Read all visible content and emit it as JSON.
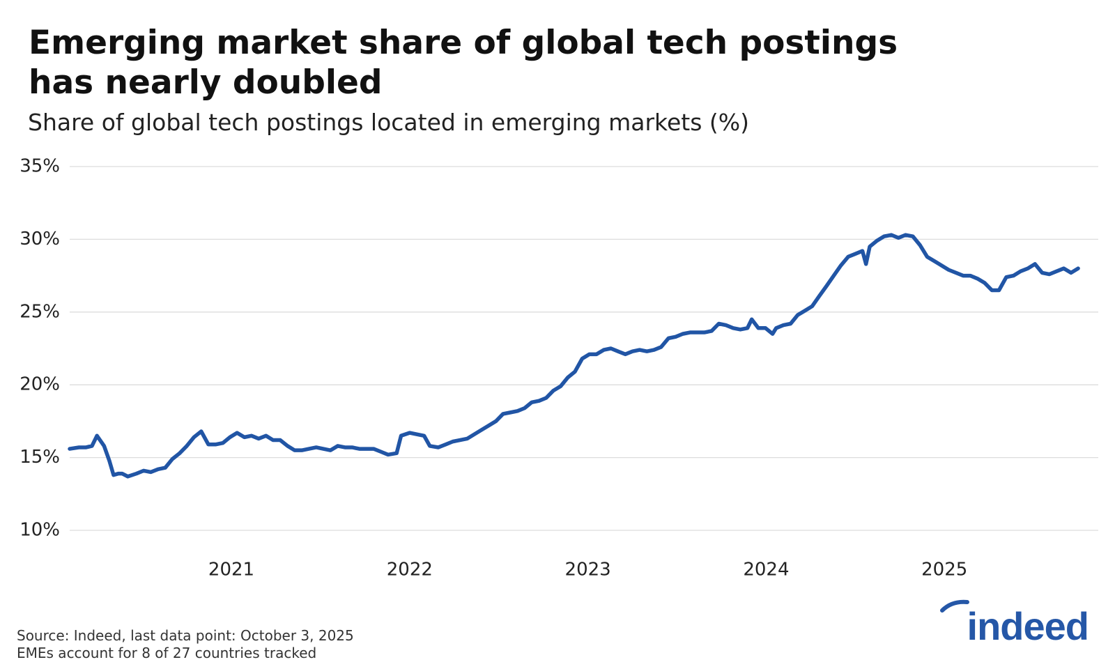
{
  "chart_data": {
    "type": "line",
    "title_lines": [
      "Emerging market share of global tech postings",
      "has nearly doubled"
    ],
    "subtitle": "Share of global tech postings located in emerging markets (%)",
    "source": "Source: Indeed, last data point: October 3, 2025",
    "note": "EMEs account for 8 of 27 countries tracked",
    "logo": "indeed",
    "grid": true,
    "xlim": [
      2020.093,
      2025.863
    ],
    "xticks": [
      2021,
      2022,
      2023,
      2024,
      2025
    ],
    "ylim": [
      10,
      35
    ],
    "yticks": [
      {
        "value": 10,
        "label": "10%"
      },
      {
        "value": 15,
        "label": "15%"
      },
      {
        "value": 20,
        "label": "20%"
      },
      {
        "value": 25,
        "label": "25%"
      },
      {
        "value": 30,
        "label": "30%"
      },
      {
        "value": 35,
        "label": "35%"
      }
    ],
    "x": [
      2020.093,
      2020.145,
      2020.185,
      2020.218,
      2020.246,
      2020.286,
      2020.315,
      2020.339,
      2020.367,
      2020.387,
      2020.419,
      2020.468,
      2020.508,
      2020.548,
      2020.589,
      2020.629,
      2020.669,
      2020.71,
      2020.75,
      2020.79,
      2020.831,
      2020.871,
      2020.911,
      2020.952,
      2020.992,
      2021.032,
      2021.073,
      2021.113,
      2021.153,
      2021.194,
      2021.234,
      2021.274,
      2021.315,
      2021.355,
      2021.395,
      2021.435,
      2021.476,
      2021.516,
      2021.556,
      2021.597,
      2021.637,
      2021.677,
      2021.718,
      2021.758,
      2021.798,
      2021.839,
      2021.879,
      2021.927,
      2021.952,
      2022.0,
      2022.04,
      2022.081,
      2022.113,
      2022.161,
      2022.202,
      2022.242,
      2022.282,
      2022.323,
      2022.363,
      2022.403,
      2022.444,
      2022.484,
      2022.524,
      2022.565,
      2022.605,
      2022.645,
      2022.685,
      2022.726,
      2022.766,
      2022.806,
      2022.847,
      2022.887,
      2022.927,
      2022.968,
      2023.008,
      2023.048,
      2023.089,
      2023.129,
      2023.169,
      2023.21,
      2023.25,
      2023.29,
      2023.331,
      2023.371,
      2023.411,
      2023.452,
      2023.492,
      2023.532,
      2023.573,
      2023.613,
      2023.653,
      2023.694,
      2023.734,
      2023.774,
      2023.815,
      2023.855,
      2023.895,
      2023.919,
      2023.956,
      2023.996,
      2024.036,
      2024.056,
      2024.097,
      2024.137,
      2024.177,
      2024.218,
      2024.258,
      2024.298,
      2024.339,
      2024.379,
      2024.419,
      2024.46,
      2024.5,
      2024.54,
      2024.56,
      2024.581,
      2024.621,
      2024.661,
      2024.702,
      2024.742,
      2024.782,
      2024.823,
      2024.863,
      2024.903,
      2024.944,
      2024.984,
      2025.024,
      2025.065,
      2025.105,
      2025.145,
      2025.185,
      2025.226,
      2025.266,
      2025.306,
      2025.347,
      2025.387,
      2025.427,
      2025.468,
      2025.508,
      2025.548,
      2025.589,
      2025.629,
      2025.669,
      2025.71,
      2025.75
    ],
    "series": [
      {
        "color": "#2155a5",
        "values": [
          15.6,
          15.7,
          15.7,
          15.8,
          16.5,
          15.8,
          14.8,
          13.8,
          13.9,
          13.9,
          13.7,
          13.9,
          14.1,
          14.0,
          14.2,
          14.3,
          14.9,
          15.3,
          15.8,
          16.4,
          16.8,
          15.9,
          15.9,
          16.0,
          16.4,
          16.7,
          16.4,
          16.5,
          16.3,
          16.5,
          16.2,
          16.2,
          15.8,
          15.5,
          15.5,
          15.6,
          15.7,
          15.6,
          15.5,
          15.8,
          15.7,
          15.7,
          15.6,
          15.6,
          15.6,
          15.4,
          15.2,
          15.3,
          16.5,
          16.7,
          16.6,
          16.5,
          15.8,
          15.7,
          15.9,
          16.1,
          16.2,
          16.3,
          16.6,
          16.9,
          17.2,
          17.5,
          18.0,
          18.1,
          18.2,
          18.4,
          18.8,
          18.9,
          19.1,
          19.6,
          19.9,
          20.5,
          20.9,
          21.8,
          22.1,
          22.1,
          22.4,
          22.5,
          22.3,
          22.1,
          22.3,
          22.4,
          22.3,
          22.4,
          22.6,
          23.2,
          23.3,
          23.5,
          23.6,
          23.6,
          23.6,
          23.7,
          24.2,
          24.1,
          23.9,
          23.8,
          23.9,
          24.5,
          23.9,
          23.9,
          23.5,
          23.9,
          24.1,
          24.2,
          24.8,
          25.1,
          25.4,
          26.1,
          26.8,
          27.5,
          28.2,
          28.8,
          29.0,
          29.2,
          28.3,
          29.5,
          29.9,
          30.2,
          30.3,
          30.1,
          30.3,
          30.2,
          29.6,
          28.8,
          28.5,
          28.2,
          27.9,
          27.7,
          27.5,
          27.5,
          27.3,
          27.0,
          26.5,
          26.5,
          27.4,
          27.5,
          27.8,
          28.0,
          28.3,
          27.7,
          27.6,
          27.8,
          28.0,
          27.7,
          28.0
        ]
      }
    ]
  }
}
